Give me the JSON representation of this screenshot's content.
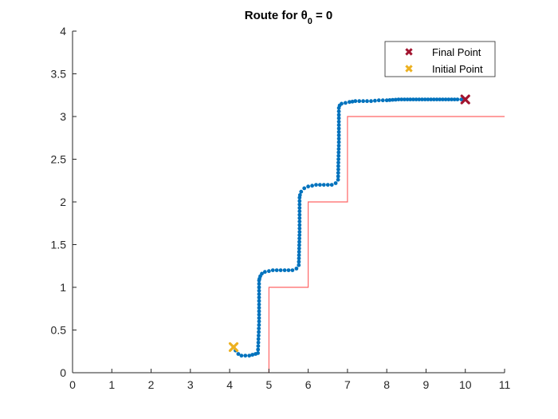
{
  "chart_data": {
    "type": "scatter",
    "title_main": "Route for θ",
    "title_sub": "0",
    "title_tail": " = 0",
    "xlim": [
      0,
      11
    ],
    "ylim": [
      0,
      4
    ],
    "xticks": [
      "0",
      "1",
      "2",
      "3",
      "4",
      "5",
      "6",
      "7",
      "8",
      "9",
      "10",
      "11"
    ],
    "yticks": [
      "0",
      "0.5",
      "1",
      "1.5",
      "2",
      "2.5",
      "3",
      "3.5",
      "4"
    ],
    "grid": false,
    "legend_position": "top-right",
    "reference_path": {
      "color": "#ff6666",
      "x": [
        5,
        5,
        6,
        6,
        7,
        7,
        11
      ],
      "y": [
        0,
        1,
        1,
        2,
        2,
        3,
        3
      ]
    },
    "route": {
      "color": "#0072bd",
      "x": [
        4.1,
        4.15,
        4.22,
        4.3,
        4.4,
        4.5,
        4.58,
        4.66,
        4.72,
        4.75,
        4.75,
        4.76,
        4.78,
        4.82,
        4.9,
        5.0,
        5.1,
        5.2,
        5.3,
        5.4,
        5.5,
        5.6,
        5.7,
        5.76,
        5.78,
        5.78,
        5.79,
        5.82,
        5.9,
        6.0,
        6.1,
        6.2,
        6.3,
        6.4,
        6.5,
        6.6,
        6.7,
        6.76,
        6.78,
        6.78,
        6.8,
        6.85,
        6.95,
        7.05,
        7.2,
        7.4,
        7.6,
        7.8,
        8.0,
        8.3,
        8.6,
        8.9,
        9.2,
        9.5,
        9.8,
        10.0
      ],
      "y": [
        0.3,
        0.26,
        0.22,
        0.2,
        0.2,
        0.2,
        0.21,
        0.22,
        0.23,
        0.6,
        1.08,
        1.1,
        1.13,
        1.16,
        1.18,
        1.19,
        1.2,
        1.2,
        1.2,
        1.2,
        1.2,
        1.2,
        1.22,
        1.26,
        1.65,
        2.05,
        2.08,
        2.12,
        2.16,
        2.18,
        2.19,
        2.2,
        2.2,
        2.2,
        2.2,
        2.2,
        2.22,
        2.26,
        2.7,
        3.1,
        3.13,
        3.15,
        3.16,
        3.17,
        3.18,
        3.18,
        3.18,
        3.19,
        3.19,
        3.2,
        3.2,
        3.2,
        3.2,
        3.2,
        3.2,
        3.2
      ]
    },
    "initial_point": {
      "x": 4.1,
      "y": 0.3,
      "color": "#edb120"
    },
    "final_point": {
      "x": 10.0,
      "y": 3.2,
      "color": "#a2142f"
    },
    "legend": [
      {
        "label": "Final Point",
        "color": "#a2142f"
      },
      {
        "label": "Initial Point",
        "color": "#edb120"
      }
    ]
  }
}
